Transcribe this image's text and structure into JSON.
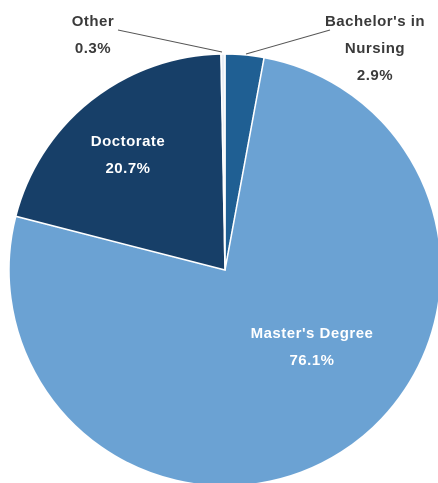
{
  "chart_data": {
    "type": "pie",
    "categories": [
      "Bachelor's in Nursing",
      "Master's Degree",
      "Doctorate",
      "Other"
    ],
    "values": [
      2.9,
      76.1,
      20.7,
      0.3
    ],
    "value_labels": [
      "2.9%",
      "76.1%",
      "20.7%",
      "0.3%"
    ],
    "colors": [
      "#1f5f93",
      "#6ba2d3",
      "#173f68",
      "#e8eef5"
    ]
  }
}
